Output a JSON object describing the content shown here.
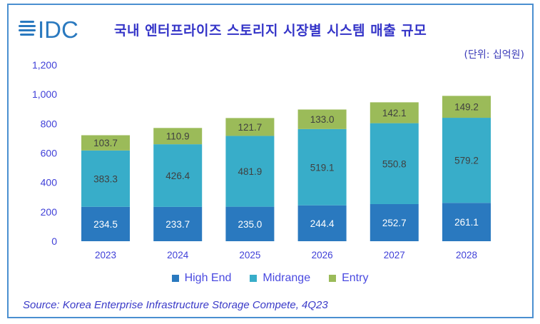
{
  "title": "국내 엔터프라이즈 스토리지 시장별 시스템 매출 규모",
  "unit": "(단위: 십억원)",
  "logo_text": "IDC",
  "source": "Source: Korea Enterprise Infrastructure Storage Compete, 4Q23",
  "chart_data": {
    "type": "bar",
    "stacked": true,
    "title": "국내 엔터프라이즈 스토리지 시장별 시스템 매출 규모",
    "categories": [
      "2023",
      "2024",
      "2025",
      "2026",
      "2027",
      "2028"
    ],
    "series": [
      {
        "name": "High End",
        "color": "#2a79bf",
        "values": [
          234.5,
          233.7,
          235.0,
          244.4,
          252.7,
          261.1
        ],
        "labels": [
          "234.5",
          "233.7",
          "235.0",
          "244.4",
          "252.7",
          "261.1"
        ]
      },
      {
        "name": "Midrange",
        "color": "#38adc9",
        "values": [
          383.3,
          426.4,
          481.9,
          519.1,
          550.8,
          579.2
        ],
        "labels": [
          "383.3",
          "426.4",
          "481.9",
          "519.1",
          "550.8",
          "579.2"
        ]
      },
      {
        "name": "Entry",
        "color": "#9bbb59",
        "values": [
          103.7,
          110.9,
          121.7,
          133.0,
          142.1,
          149.2
        ],
        "labels": [
          "103.7",
          "110.9",
          "121.7",
          "133.0",
          "142.1",
          "149.2"
        ]
      }
    ],
    "ylim": [
      0,
      1200
    ],
    "yticks": [
      "0",
      "200",
      "400",
      "600",
      "800",
      "1,000",
      "1,200"
    ],
    "grid": false,
    "legend": "bottom"
  }
}
